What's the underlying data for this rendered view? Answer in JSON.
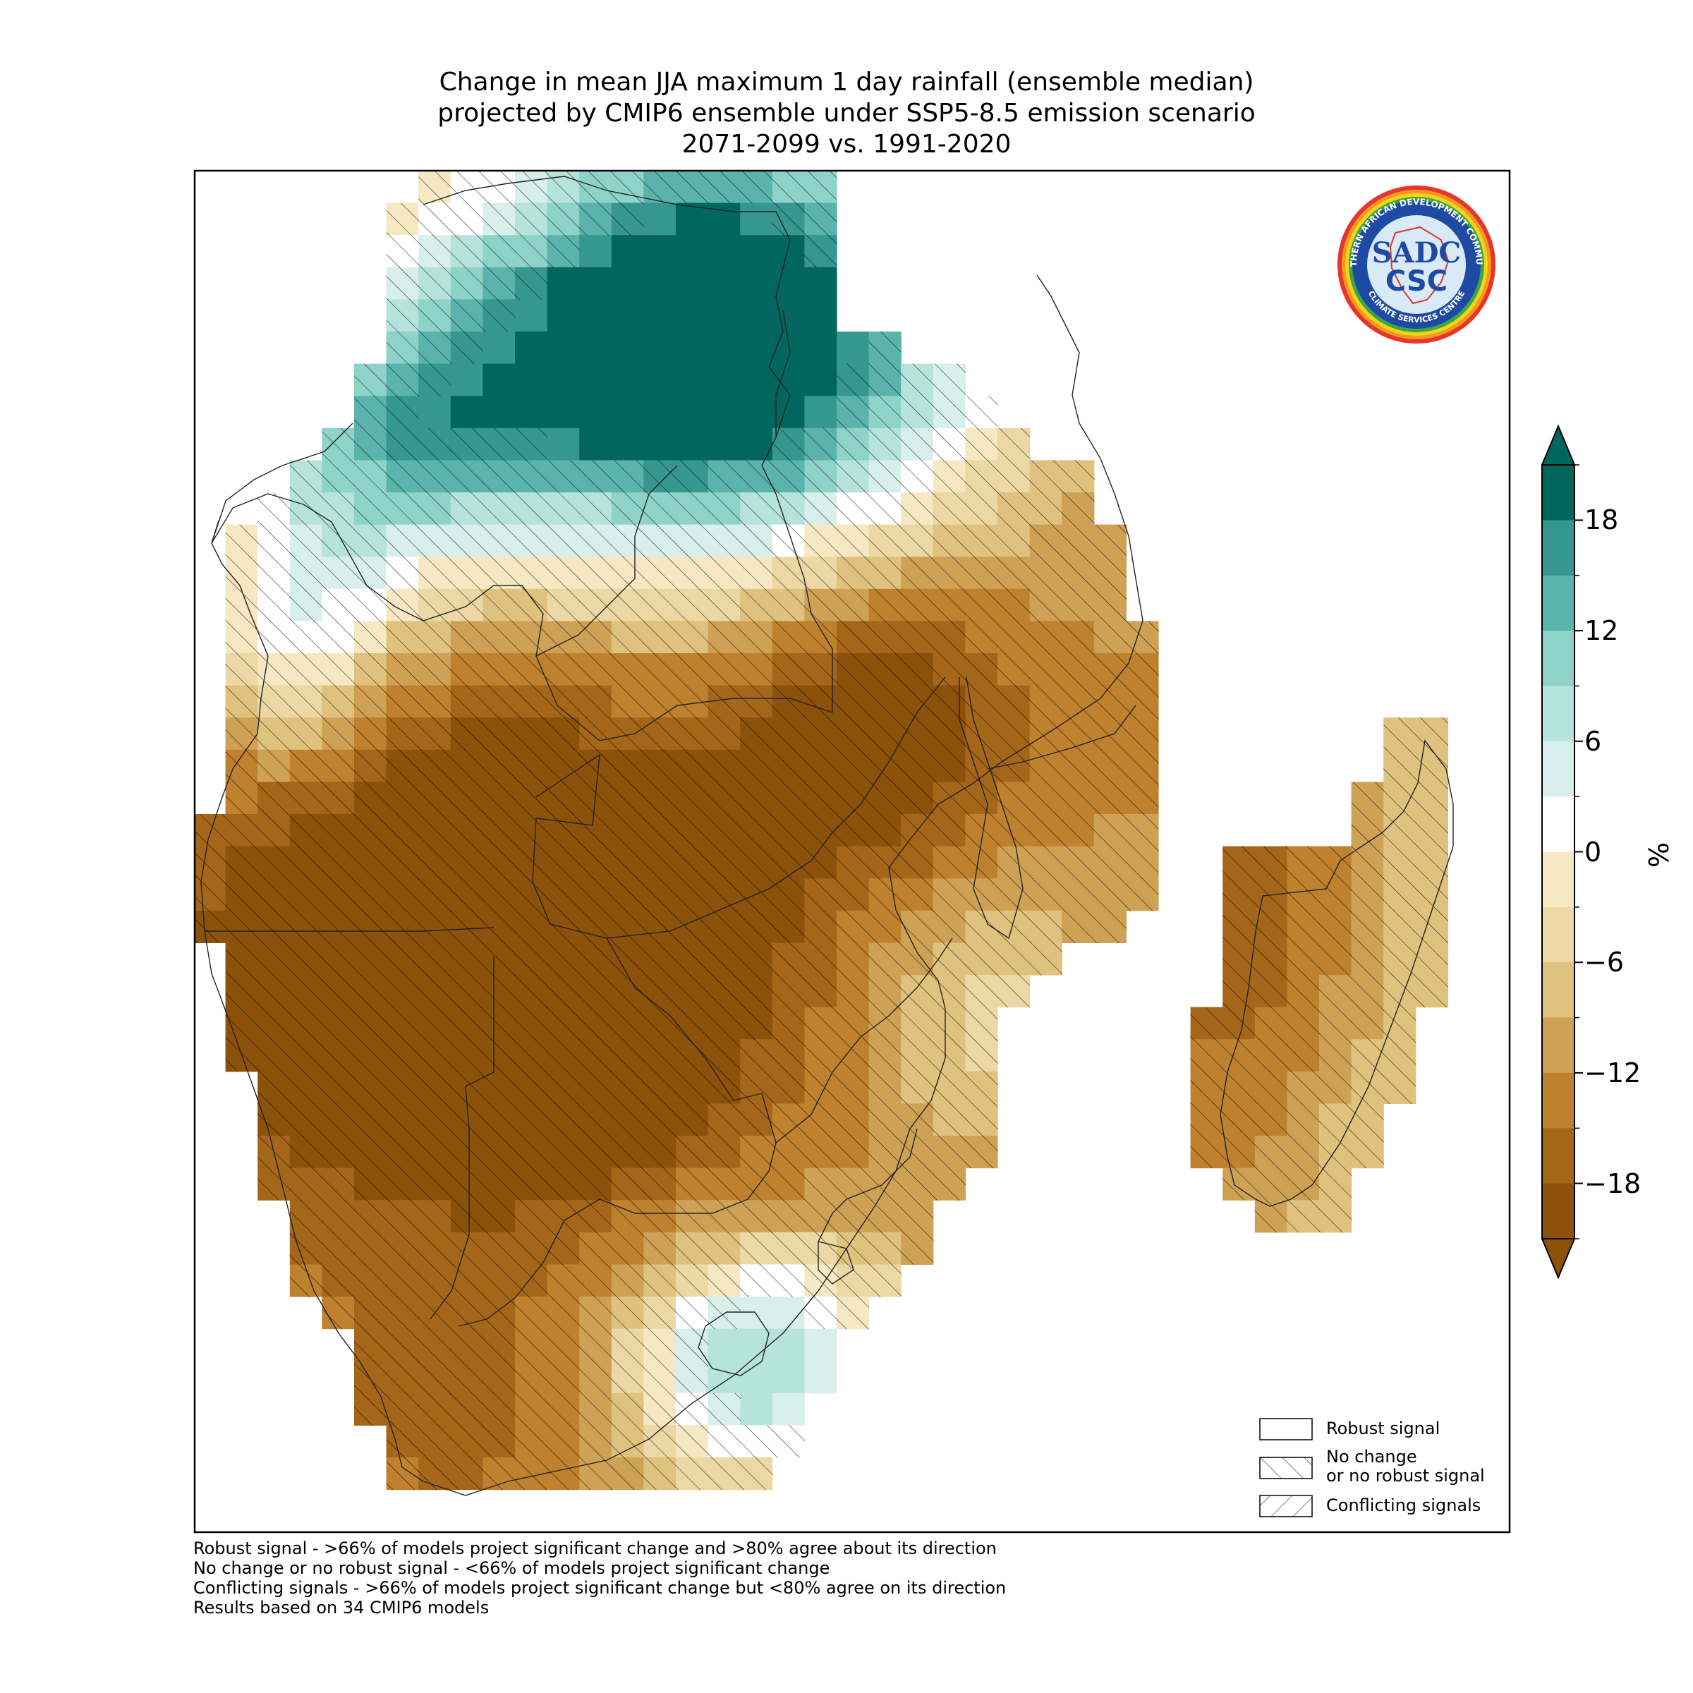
{
  "title": {
    "line1": "Change in mean JJA maximum 1 day rainfall (ensemble median)",
    "line2": "projected by CMIP6 ensemble under SSP5-8.5 emission scenario",
    "line3": "2071-2099 vs. 1991-2020"
  },
  "colorbar": {
    "unit": "%",
    "ticks": [
      "18",
      "12",
      "6",
      "0",
      "−6",
      "−12",
      "−18"
    ],
    "tick_values": [
      18,
      12,
      6,
      0,
      -6,
      -12,
      -18
    ],
    "range": [
      -21,
      21
    ],
    "colors": [
      "#8c510a",
      "#a5661a",
      "#bf812d",
      "#cfa155",
      "#dfc27d",
      "#ecd8a4",
      "#f6e8c3",
      "#ffffff",
      "#d8efeb",
      "#b6e3dc",
      "#8dd3c7",
      "#5ab4ac",
      "#35978f",
      "#01665e"
    ]
  },
  "legend": {
    "robust": "Robust signal",
    "nochange_line1": "No change",
    "nochange_line2": "or no robust signal",
    "conflicting": "Conflicting signals"
  },
  "footnotes": {
    "line1": "Robust signal - >66% of models project significant change and >80% agree about its direction",
    "line2": "No change or no robust signal - <66% of models project significant change",
    "line3": "Conflicting signals - >66% of models project significant change but <80% agree on its direction",
    "line4": "Results based on 34 CMIP6 models"
  },
  "logo": {
    "top_text": "SOUTHERN AFRICAN DEVELOPMENT COMMUNITY",
    "bottom_text": "CLIMATE SERVICES CENTRE",
    "mark_top": "SADC",
    "mark_bottom": "CSC"
  },
  "map_data": {
    "type": "gridded-change-map",
    "variable": "JJA maximum 1 day rainfall change (%)",
    "notes": "Strong drying (below -18%) over Angola interior, Namibia, Botswana, Zambia west; wetting (above 18%) over DRC/Tanzania in the north; wetting in south-east coastal South Africa; drying over Madagascar west."
  }
}
